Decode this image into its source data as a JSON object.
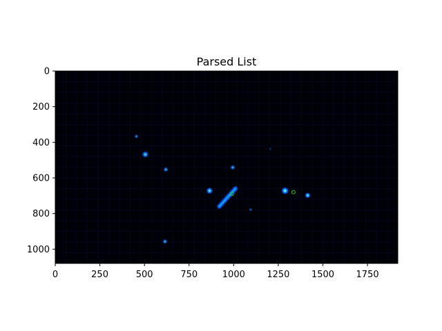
{
  "chart_data": {
    "type": "heatmap",
    "title": "Parsed List",
    "xlabel": "",
    "ylabel": "",
    "xlim": [
      0,
      1920
    ],
    "ylim": [
      1080,
      0
    ],
    "y_inverted": true,
    "grid": false,
    "x_ticks": [
      0,
      250,
      500,
      750,
      1000,
      1250,
      1500,
      1750
    ],
    "y_ticks": [
      0,
      200,
      400,
      600,
      800,
      1000
    ],
    "background_color": "#000008",
    "bright_spots": [
      {
        "x": 455,
        "y": 367,
        "r": 10,
        "intensity": 0.6
      },
      {
        "x": 505,
        "y": 468,
        "r": 16,
        "intensity": 0.85
      },
      {
        "x": 620,
        "y": 553,
        "r": 12,
        "intensity": 0.7
      },
      {
        "x": 995,
        "y": 541,
        "r": 12,
        "intensity": 0.7
      },
      {
        "x": 865,
        "y": 672,
        "r": 16,
        "intensity": 0.95
      },
      {
        "x": 1288,
        "y": 672,
        "r": 18,
        "intensity": 1.0
      },
      {
        "x": 1415,
        "y": 698,
        "r": 14,
        "intensity": 0.95
      },
      {
        "x": 1095,
        "y": 778,
        "r": 9,
        "intensity": 0.4
      },
      {
        "x": 615,
        "y": 957,
        "r": 12,
        "intensity": 0.7
      },
      {
        "x": 1205,
        "y": 437,
        "r": 6,
        "intensity": 0.3
      }
    ],
    "streak": {
      "x_start": 920,
      "y_start": 760,
      "x_end": 1010,
      "y_end": 660,
      "intensity": 0.75
    },
    "marker": {
      "x": 1335,
      "y": 680,
      "color": "#22cc22",
      "shape": "circle"
    },
    "marker_2": {
      "x": 990,
      "y": 690,
      "color": "#22cc22",
      "shape": "circle"
    }
  },
  "colors": {
    "spot_core": "#e6ffff",
    "spot_mid": "#16b4ff",
    "spot_outer": "#0a55ff"
  }
}
